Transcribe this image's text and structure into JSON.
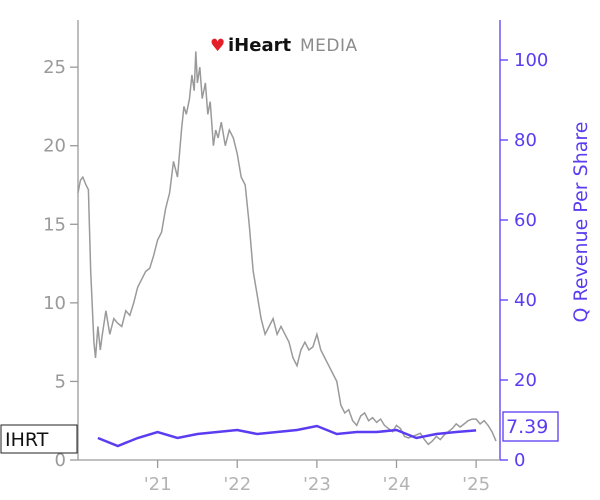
{
  "logo": {
    "heart_text": "♥",
    "bold": "iHeart",
    "light": "MEDIA"
  },
  "ticker_label": "IHRT",
  "last_value_label": "7.39",
  "colors": {
    "price": "#9a9a9a",
    "revenue": "#5b3cf0",
    "axis_left": "#9a9a9a",
    "axis_right": "#5b3cf0",
    "logo_heart": "#e3202a"
  },
  "chart_data": {
    "type": "line",
    "x_ticks": [
      "'21",
      "'22",
      "'23",
      "'24",
      "'25"
    ],
    "x_tick_values": [
      2021.0,
      2022.0,
      2023.0,
      2024.0,
      2025.0
    ],
    "xlim": [
      2020.0,
      2025.3
    ],
    "y_left": {
      "label": "",
      "ticks": [
        0,
        5,
        10,
        15,
        20,
        25
      ],
      "lim": [
        0,
        28
      ]
    },
    "y_right": {
      "label": "Q Revenue Per Share",
      "ticks": [
        0,
        20,
        40,
        60,
        80,
        100
      ],
      "lim": [
        0,
        110
      ]
    },
    "series": [
      {
        "axis": "left",
        "x": [
          2020.0,
          2020.03,
          2020.06,
          2020.1,
          2020.13,
          2020.16,
          2020.2,
          2020.22,
          2020.25,
          2020.28,
          2020.3,
          2020.35,
          2020.4,
          2020.45,
          2020.5,
          2020.55,
          2020.6,
          2020.65,
          2020.7,
          2020.75,
          2020.8,
          2020.85,
          2020.9,
          2020.95,
          2021.0,
          2021.05,
          2021.1,
          2021.15,
          2021.2,
          2021.25,
          2021.3,
          2021.33,
          2021.36,
          2021.4,
          2021.43,
          2021.46,
          2021.48,
          2021.5,
          2021.53,
          2021.56,
          2021.6,
          2021.63,
          2021.66,
          2021.7,
          2021.73,
          2021.76,
          2021.8,
          2021.85,
          2021.9,
          2021.95,
          2022.0,
          2022.05,
          2022.1,
          2022.15,
          2022.2,
          2022.25,
          2022.3,
          2022.35,
          2022.4,
          2022.45,
          2022.5,
          2022.55,
          2022.6,
          2022.65,
          2022.7,
          2022.75,
          2022.8,
          2022.85,
          2022.9,
          2022.95,
          2023.0,
          2023.05,
          2023.1,
          2023.15,
          2023.2,
          2023.25,
          2023.3,
          2023.35,
          2023.4,
          2023.45,
          2023.5,
          2023.55,
          2023.6,
          2023.65,
          2023.7,
          2023.75,
          2023.8,
          2023.85,
          2023.9,
          2023.95,
          2024.0,
          2024.05,
          2024.1,
          2024.15,
          2024.2,
          2024.25,
          2024.3,
          2024.35,
          2024.4,
          2024.45,
          2024.5,
          2024.55,
          2024.6,
          2024.65,
          2024.7,
          2024.75,
          2024.8,
          2024.85,
          2024.9,
          2024.95,
          2025.0,
          2025.05,
          2025.1,
          2025.15,
          2025.2,
          2025.25
        ],
        "values": [
          17.0,
          17.8,
          18.0,
          17.5,
          17.2,
          12.0,
          7.5,
          6.5,
          8.5,
          7.0,
          7.8,
          9.5,
          8.0,
          9.0,
          8.7,
          8.5,
          9.5,
          9.2,
          10.0,
          11.0,
          11.5,
          12.0,
          12.2,
          13.0,
          14.0,
          14.5,
          16.0,
          17.0,
          19.0,
          18.0,
          21.0,
          22.5,
          22.0,
          23.0,
          24.5,
          23.5,
          26.0,
          24.0,
          25.0,
          23.0,
          24.0,
          22.0,
          22.8,
          20.0,
          21.0,
          20.5,
          21.5,
          20.0,
          21.0,
          20.5,
          19.5,
          18.0,
          17.5,
          15.0,
          12.0,
          10.5,
          9.0,
          8.0,
          8.5,
          9.0,
          8.0,
          8.5,
          8.0,
          7.5,
          6.5,
          6.0,
          7.0,
          7.5,
          7.0,
          7.2,
          8.0,
          7.0,
          6.5,
          6.0,
          5.5,
          5.0,
          3.5,
          3.0,
          3.2,
          2.5,
          2.2,
          2.8,
          3.0,
          2.5,
          2.7,
          2.4,
          2.6,
          2.2,
          2.0,
          1.8,
          2.2,
          2.0,
          1.5,
          1.4,
          1.5,
          1.6,
          1.7,
          1.3,
          1.0,
          1.2,
          1.5,
          1.3,
          1.6,
          1.8,
          2.0,
          2.3,
          2.1,
          2.3,
          2.5,
          2.6,
          2.6,
          2.3,
          2.5,
          2.2,
          1.8,
          1.2
        ]
      },
      {
        "axis": "right",
        "x": [
          2020.25,
          2020.5,
          2020.75,
          2021.0,
          2021.25,
          2021.5,
          2021.75,
          2022.0,
          2022.25,
          2022.5,
          2022.75,
          2023.0,
          2023.25,
          2023.5,
          2023.75,
          2024.0,
          2024.25,
          2024.5,
          2024.75,
          2025.0
        ],
        "values": [
          5.5,
          3.5,
          5.5,
          7.0,
          5.5,
          6.5,
          7.0,
          7.5,
          6.5,
          7.0,
          7.5,
          8.5,
          6.5,
          7.0,
          7.0,
          7.5,
          5.5,
          6.5,
          7.0,
          7.39
        ]
      }
    ]
  }
}
